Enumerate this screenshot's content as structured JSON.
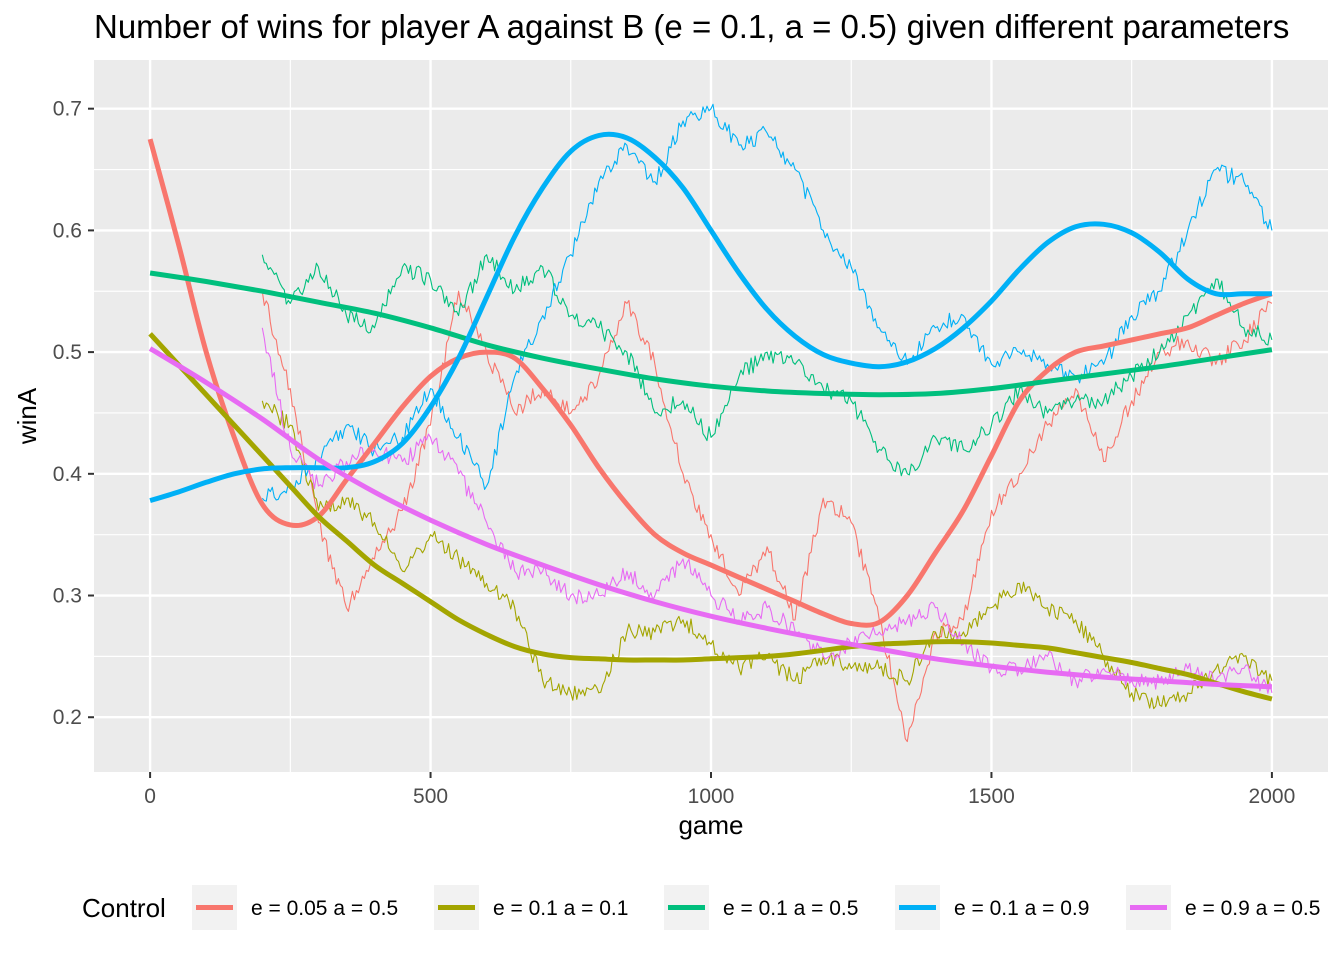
{
  "chart_data": {
    "type": "line",
    "title": "Number of wins for player A against B (e = 0.1, a = 0.5) given different parameters",
    "xlabel": "game",
    "ylabel": "winA",
    "xlim": [
      -100,
      2100
    ],
    "ylim": [
      0.155,
      0.74
    ],
    "xticks": [
      0,
      500,
      1000,
      1500,
      2000
    ],
    "yticks": [
      0.2,
      0.3,
      0.4,
      0.5,
      0.6,
      0.7
    ],
    "xtick_labels": [
      "0",
      "500",
      "1000",
      "1500",
      "2000"
    ],
    "ytick_labels": [
      "0.2",
      "0.3",
      "0.4",
      "0.5",
      "0.6",
      "0.7"
    ],
    "grid": true,
    "legend": {
      "title": "Control",
      "position": "bottom"
    },
    "series": [
      {
        "name": "e = 0.05 a = 0.5",
        "color": "#F8766D",
        "raw": {
          "x": [
            200,
            250,
            300,
            350,
            400,
            450,
            500,
            550,
            600,
            650,
            700,
            750,
            800,
            850,
            900,
            950,
            1000,
            1050,
            1100,
            1150,
            1200,
            1250,
            1300,
            1350,
            1400,
            1450,
            1500,
            1550,
            1600,
            1650,
            1700,
            1750,
            1800,
            1850,
            1900,
            1950,
            2000
          ],
          "y": [
            0.55,
            0.47,
            0.36,
            0.29,
            0.33,
            0.37,
            0.44,
            0.55,
            0.5,
            0.45,
            0.47,
            0.45,
            0.48,
            0.54,
            0.49,
            0.4,
            0.35,
            0.3,
            0.34,
            0.28,
            0.38,
            0.36,
            0.28,
            0.18,
            0.27,
            0.28,
            0.37,
            0.4,
            0.44,
            0.47,
            0.41,
            0.46,
            0.5,
            0.51,
            0.49,
            0.51,
            0.54
          ]
        },
        "smooth": {
          "x": [
            0,
            50,
            100,
            150,
            200,
            250,
            300,
            350,
            400,
            450,
            500,
            550,
            600,
            650,
            700,
            750,
            800,
            850,
            900,
            950,
            1000,
            1050,
            1100,
            1150,
            1200,
            1250,
            1300,
            1350,
            1400,
            1450,
            1500,
            1550,
            1600,
            1650,
            1700,
            1750,
            1800,
            1850,
            1900,
            1950,
            2000
          ],
          "y": [
            0.675,
            0.59,
            0.5,
            0.43,
            0.375,
            0.358,
            0.365,
            0.395,
            0.425,
            0.455,
            0.48,
            0.495,
            0.5,
            0.495,
            0.47,
            0.44,
            0.405,
            0.375,
            0.35,
            0.335,
            0.325,
            0.315,
            0.305,
            0.295,
            0.285,
            0.277,
            0.278,
            0.3,
            0.335,
            0.37,
            0.415,
            0.46,
            0.485,
            0.5,
            0.505,
            0.51,
            0.515,
            0.52,
            0.53,
            0.54,
            0.548
          ]
        }
      },
      {
        "name": "e = 0.1 a = 0.1",
        "color": "#A3A500",
        "raw": {
          "x": [
            200,
            250,
            300,
            350,
            400,
            450,
            500,
            550,
            600,
            650,
            700,
            750,
            800,
            850,
            900,
            950,
            1000,
            1050,
            1100,
            1150,
            1200,
            1250,
            1300,
            1350,
            1400,
            1450,
            1500,
            1550,
            1600,
            1650,
            1700,
            1750,
            1800,
            1850,
            1900,
            1950,
            2000
          ],
          "y": [
            0.46,
            0.44,
            0.37,
            0.38,
            0.36,
            0.32,
            0.35,
            0.33,
            0.31,
            0.29,
            0.23,
            0.22,
            0.22,
            0.27,
            0.27,
            0.28,
            0.26,
            0.24,
            0.25,
            0.23,
            0.25,
            0.24,
            0.24,
            0.23,
            0.27,
            0.27,
            0.29,
            0.31,
            0.29,
            0.28,
            0.25,
            0.22,
            0.21,
            0.22,
            0.24,
            0.25,
            0.23
          ]
        },
        "smooth": {
          "x": [
            0,
            50,
            100,
            150,
            200,
            250,
            300,
            350,
            400,
            450,
            500,
            550,
            600,
            650,
            700,
            750,
            800,
            850,
            900,
            950,
            1000,
            1050,
            1100,
            1150,
            1200,
            1250,
            1300,
            1350,
            1400,
            1450,
            1500,
            1550,
            1600,
            1650,
            1700,
            1750,
            1800,
            1850,
            1900,
            1950,
            2000
          ],
          "y": [
            0.515,
            0.49,
            0.465,
            0.44,
            0.415,
            0.39,
            0.365,
            0.345,
            0.325,
            0.31,
            0.295,
            0.28,
            0.268,
            0.258,
            0.252,
            0.249,
            0.248,
            0.247,
            0.247,
            0.247,
            0.248,
            0.249,
            0.25,
            0.252,
            0.255,
            0.258,
            0.26,
            0.261,
            0.262,
            0.262,
            0.261,
            0.259,
            0.257,
            0.253,
            0.249,
            0.245,
            0.24,
            0.235,
            0.228,
            0.221,
            0.215
          ]
        }
      },
      {
        "name": "e = 0.1 a = 0.5",
        "color": "#00BF7D",
        "raw": {
          "x": [
            200,
            250,
            300,
            350,
            400,
            450,
            500,
            550,
            600,
            650,
            700,
            750,
            800,
            850,
            900,
            950,
            1000,
            1050,
            1100,
            1150,
            1200,
            1250,
            1300,
            1350,
            1400,
            1450,
            1500,
            1550,
            1600,
            1650,
            1700,
            1750,
            1800,
            1850,
            1900,
            1950,
            2000
          ],
          "y": [
            0.58,
            0.54,
            0.57,
            0.53,
            0.52,
            0.57,
            0.56,
            0.53,
            0.58,
            0.55,
            0.57,
            0.53,
            0.52,
            0.5,
            0.45,
            0.46,
            0.43,
            0.48,
            0.5,
            0.49,
            0.47,
            0.46,
            0.42,
            0.4,
            0.43,
            0.42,
            0.44,
            0.47,
            0.45,
            0.46,
            0.46,
            0.48,
            0.5,
            0.53,
            0.56,
            0.52,
            0.51
          ]
        },
        "smooth": {
          "x": [
            0,
            100,
            200,
            300,
            400,
            500,
            600,
            700,
            800,
            900,
            1000,
            1100,
            1200,
            1300,
            1400,
            1500,
            1600,
            1700,
            1800,
            1900,
            2000
          ],
          "y": [
            0.565,
            0.558,
            0.55,
            0.541,
            0.532,
            0.52,
            0.506,
            0.495,
            0.486,
            0.478,
            0.472,
            0.468,
            0.466,
            0.465,
            0.466,
            0.47,
            0.476,
            0.482,
            0.488,
            0.495,
            0.502
          ]
        }
      },
      {
        "name": "e = 0.1 a = 0.9",
        "color": "#00B0F6",
        "raw": {
          "x": [
            200,
            250,
            300,
            350,
            400,
            450,
            500,
            550,
            600,
            650,
            700,
            750,
            800,
            850,
            900,
            950,
            1000,
            1050,
            1100,
            1150,
            1200,
            1250,
            1300,
            1350,
            1400,
            1450,
            1500,
            1550,
            1600,
            1650,
            1700,
            1750,
            1800,
            1850,
            1900,
            1950,
            2000
          ],
          "y": [
            0.38,
            0.39,
            0.41,
            0.44,
            0.42,
            0.43,
            0.47,
            0.43,
            0.39,
            0.48,
            0.53,
            0.58,
            0.64,
            0.67,
            0.64,
            0.69,
            0.7,
            0.67,
            0.68,
            0.65,
            0.6,
            0.57,
            0.52,
            0.49,
            0.52,
            0.53,
            0.49,
            0.5,
            0.49,
            0.48,
            0.49,
            0.53,
            0.55,
            0.6,
            0.65,
            0.64,
            0.6
          ]
        },
        "smooth": {
          "x": [
            0,
            50,
            100,
            150,
            200,
            250,
            300,
            350,
            400,
            450,
            500,
            550,
            600,
            650,
            700,
            750,
            800,
            850,
            900,
            950,
            1000,
            1050,
            1100,
            1150,
            1200,
            1250,
            1300,
            1350,
            1400,
            1450,
            1500,
            1550,
            1600,
            1650,
            1700,
            1750,
            1800,
            1850,
            1900,
            1950,
            2000
          ],
          "y": [
            0.378,
            0.385,
            0.393,
            0.4,
            0.404,
            0.405,
            0.405,
            0.405,
            0.41,
            0.425,
            0.455,
            0.495,
            0.545,
            0.595,
            0.635,
            0.665,
            0.678,
            0.676,
            0.66,
            0.635,
            0.6,
            0.565,
            0.535,
            0.513,
            0.498,
            0.491,
            0.488,
            0.492,
            0.503,
            0.52,
            0.542,
            0.568,
            0.59,
            0.603,
            0.605,
            0.598,
            0.582,
            0.56,
            0.548,
            0.548,
            0.548
          ]
        }
      },
      {
        "name": "e = 0.9 a = 0.5",
        "color": "#E76BF3",
        "raw": {
          "x": [
            200,
            250,
            300,
            350,
            400,
            450,
            500,
            550,
            600,
            650,
            700,
            750,
            800,
            850,
            900,
            950,
            1000,
            1050,
            1100,
            1150,
            1200,
            1250,
            1300,
            1350,
            1400,
            1450,
            1500,
            1550,
            1600,
            1650,
            1700,
            1750,
            1800,
            1850,
            1900,
            1950,
            2000
          ],
          "y": [
            0.52,
            0.42,
            0.39,
            0.41,
            0.42,
            0.41,
            0.43,
            0.4,
            0.36,
            0.32,
            0.32,
            0.3,
            0.3,
            0.32,
            0.3,
            0.33,
            0.3,
            0.28,
            0.29,
            0.27,
            0.25,
            0.26,
            0.27,
            0.28,
            0.29,
            0.26,
            0.24,
            0.24,
            0.25,
            0.23,
            0.24,
            0.23,
            0.23,
            0.24,
            0.23,
            0.24,
            0.22
          ]
        },
        "smooth": {
          "x": [
            0,
            100,
            200,
            300,
            400,
            500,
            600,
            700,
            800,
            900,
            1000,
            1100,
            1200,
            1300,
            1400,
            1500,
            1600,
            1700,
            1800,
            1900,
            2000
          ],
          "y": [
            0.503,
            0.475,
            0.445,
            0.412,
            0.385,
            0.362,
            0.342,
            0.325,
            0.309,
            0.295,
            0.283,
            0.273,
            0.264,
            0.256,
            0.248,
            0.242,
            0.237,
            0.233,
            0.23,
            0.227,
            0.225
          ]
        }
      }
    ]
  }
}
